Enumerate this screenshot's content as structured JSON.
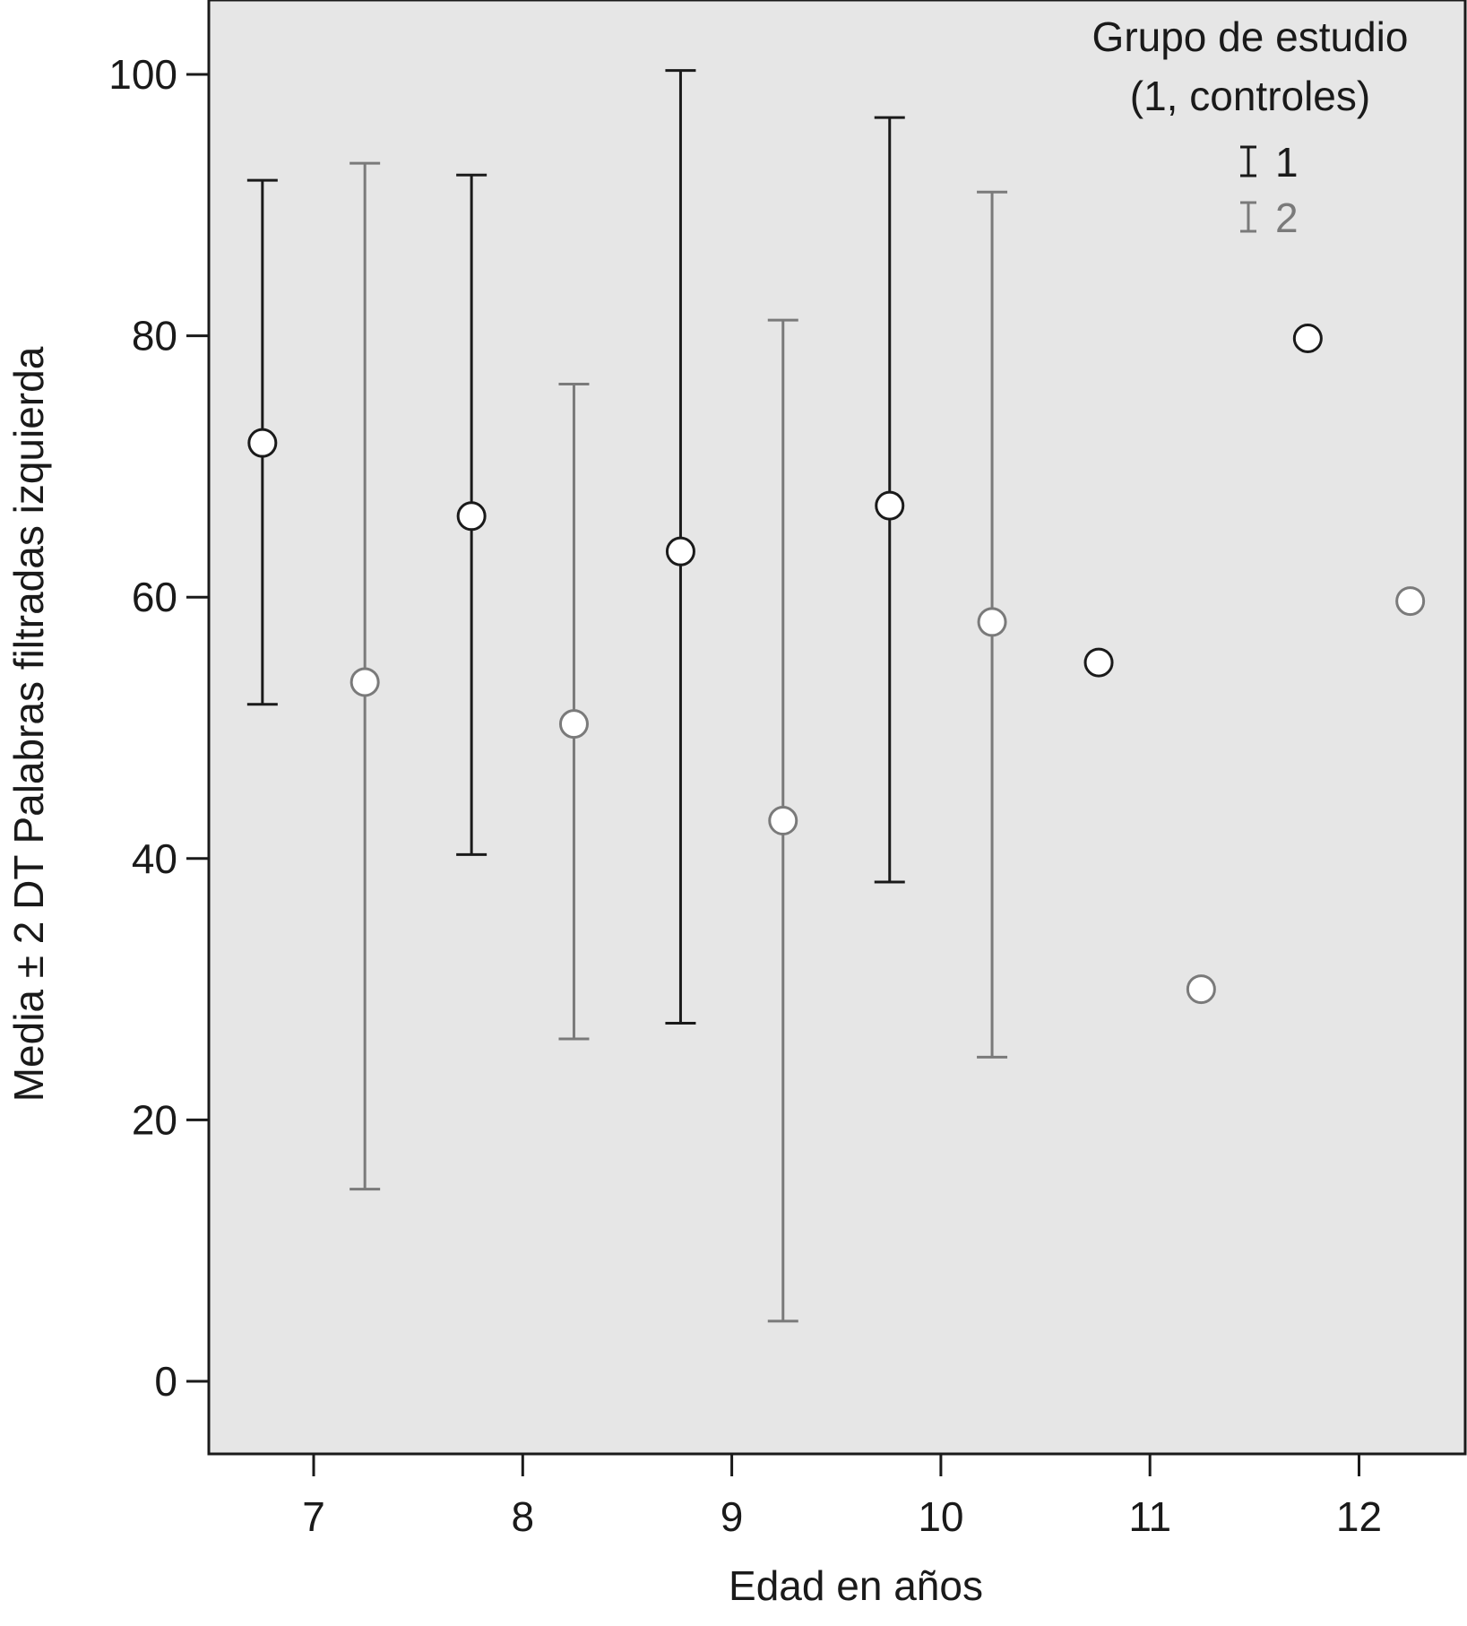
{
  "chart_data": {
    "type": "scatter",
    "subtype": "error-bar",
    "xlabel": "Edad en años",
    "ylabel": "Media ± 2 DT Palabras filtradas izquierda",
    "xticks": [
      "7",
      "8",
      "9",
      "10",
      "11",
      "12"
    ],
    "yticks": [
      "0",
      "20",
      "40",
      "60",
      "80",
      "100"
    ],
    "xlim": [
      6.5,
      12.5
    ],
    "ylim": [
      -5.5,
      105.5
    ],
    "grid": false,
    "background": "#e6e6e6",
    "legend": {
      "title_line1": "Grupo de estudio",
      "title_line2": "(1, controles)",
      "position": "top-right",
      "entries": [
        "1",
        "2"
      ]
    },
    "series": [
      {
        "name": "1",
        "color": "#1a1a1a",
        "points": [
          {
            "age": 7,
            "mean": 71.8,
            "low": 51.8,
            "high": 91.9
          },
          {
            "age": 8,
            "mean": 66.2,
            "low": 40.3,
            "high": 92.3
          },
          {
            "age": 9,
            "mean": 63.5,
            "low": 27.4,
            "high": 100.3
          },
          {
            "age": 10,
            "mean": 67.0,
            "low": 38.2,
            "high": 96.7
          },
          {
            "age": 11,
            "mean": 55.0,
            "low": null,
            "high": null
          },
          {
            "age": 12,
            "mean": 79.8,
            "low": null,
            "high": null
          }
        ]
      },
      {
        "name": "2",
        "color": "#7a7a7a",
        "points": [
          {
            "age": 7,
            "mean": 53.5,
            "low": 14.7,
            "high": 93.2
          },
          {
            "age": 8,
            "mean": 50.3,
            "low": 26.2,
            "high": 76.3
          },
          {
            "age": 9,
            "mean": 42.9,
            "low": 4.6,
            "high": 81.2
          },
          {
            "age": 10,
            "mean": 58.1,
            "low": 24.8,
            "high": 91.0
          },
          {
            "age": 11,
            "mean": 30.0,
            "low": null,
            "high": null
          },
          {
            "age": 12,
            "mean": 59.7,
            "low": null,
            "high": null
          }
        ]
      }
    ]
  }
}
